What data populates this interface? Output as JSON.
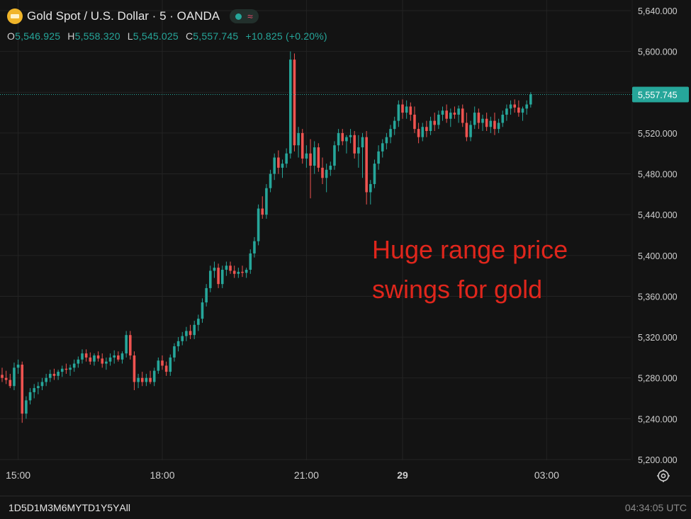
{
  "header": {
    "title": "Gold Spot / U.S. Dollar · 5 · OANDA",
    "status_icon": "market-open-dot",
    "wave_icon": "approx-wave-icon",
    "ohlc": [
      {
        "key": "O",
        "value": "5,546.925"
      },
      {
        "key": "H",
        "value": "5,558.320"
      },
      {
        "key": "L",
        "value": "5,545.025"
      },
      {
        "key": "C",
        "value": "5,557.745"
      },
      {
        "key": "",
        "value": "+10.825 (+0.20%)"
      }
    ]
  },
  "colors": {
    "up": "#26a69a",
    "down": "#ef5350",
    "annotation": "#e0261c",
    "price_tag": "#26a69a"
  },
  "chart_data": {
    "type": "candlestick",
    "symbol": "Gold Spot / U.S. Dollar",
    "interval": "5",
    "source": "OANDA",
    "y_ticks": [
      5200,
      5240,
      5280,
      5320,
      5360,
      5400,
      5440,
      5480,
      5520,
      5560,
      5600,
      5640
    ],
    "y_tick_labels": [
      "5,200.000",
      "5,240.000",
      "5,280.000",
      "5,320.000",
      "5,360.000",
      "5,400.000",
      "5,440.000",
      "5,480.000",
      "5,520.000",
      "5,560.000",
      "5,600.000",
      "5,640.000"
    ],
    "ylim": [
      5200,
      5640
    ],
    "x_tick_labels": [
      {
        "label": "15:00",
        "index": 4
      },
      {
        "label": "18:00",
        "index": 40
      },
      {
        "label": "21:00",
        "index": 76
      },
      {
        "label": "29",
        "index": 100
      },
      {
        "label": "03:00",
        "index": 136
      }
    ],
    "last_price": 5557.745,
    "last_price_label": "5,557.745",
    "annotation": [
      "Huge range price",
      "swings for gold"
    ],
    "candles": [
      [
        5283,
        5290,
        5276,
        5280
      ],
      [
        5280,
        5287,
        5274,
        5278
      ],
      [
        5278,
        5284,
        5270,
        5272
      ],
      [
        5272,
        5295,
        5268,
        5290
      ],
      [
        5290,
        5298,
        5284,
        5293
      ],
      [
        5293,
        5296,
        5236,
        5245
      ],
      [
        5245,
        5262,
        5240,
        5258
      ],
      [
        5258,
        5270,
        5254,
        5266
      ],
      [
        5266,
        5274,
        5260,
        5270
      ],
      [
        5270,
        5276,
        5264,
        5272
      ],
      [
        5272,
        5280,
        5268,
        5276
      ],
      [
        5276,
        5284,
        5272,
        5280
      ],
      [
        5280,
        5288,
        5276,
        5284
      ],
      [
        5284,
        5289,
        5278,
        5282
      ],
      [
        5282,
        5288,
        5278,
        5286
      ],
      [
        5286,
        5292,
        5281,
        5289
      ],
      [
        5289,
        5294,
        5284,
        5288
      ],
      [
        5288,
        5293,
        5282,
        5290
      ],
      [
        5290,
        5298,
        5286,
        5294
      ],
      [
        5294,
        5301,
        5290,
        5298
      ],
      [
        5298,
        5308,
        5294,
        5304
      ],
      [
        5304,
        5308,
        5296,
        5300
      ],
      [
        5300,
        5305,
        5293,
        5296
      ],
      [
        5296,
        5304,
        5292,
        5302
      ],
      [
        5302,
        5306,
        5296,
        5299
      ],
      [
        5299,
        5304,
        5290,
        5294
      ],
      [
        5294,
        5300,
        5288,
        5296
      ],
      [
        5296,
        5304,
        5292,
        5300
      ],
      [
        5300,
        5307,
        5294,
        5302
      ],
      [
        5302,
        5306,
        5296,
        5298
      ],
      [
        5298,
        5306,
        5294,
        5304
      ],
      [
        5304,
        5326,
        5300,
        5322
      ],
      [
        5322,
        5326,
        5298,
        5302
      ],
      [
        5302,
        5306,
        5268,
        5276
      ],
      [
        5276,
        5284,
        5270,
        5280
      ],
      [
        5280,
        5286,
        5272,
        5276
      ],
      [
        5276,
        5284,
        5272,
        5280
      ],
      [
        5280,
        5287,
        5274,
        5276
      ],
      [
        5276,
        5290,
        5272,
        5287
      ],
      [
        5287,
        5300,
        5284,
        5297
      ],
      [
        5297,
        5302,
        5288,
        5292
      ],
      [
        5292,
        5296,
        5282,
        5286
      ],
      [
        5286,
        5303,
        5282,
        5300
      ],
      [
        5300,
        5314,
        5296,
        5311
      ],
      [
        5311,
        5320,
        5306,
        5316
      ],
      [
        5316,
        5325,
        5312,
        5321
      ],
      [
        5321,
        5330,
        5316,
        5326
      ],
      [
        5326,
        5332,
        5318,
        5322
      ],
      [
        5322,
        5336,
        5318,
        5332
      ],
      [
        5332,
        5342,
        5326,
        5338
      ],
      [
        5338,
        5358,
        5334,
        5354
      ],
      [
        5354,
        5372,
        5350,
        5368
      ],
      [
        5368,
        5390,
        5364,
        5385
      ],
      [
        5385,
        5394,
        5378,
        5388
      ],
      [
        5388,
        5392,
        5368,
        5372
      ],
      [
        5372,
        5390,
        5368,
        5386
      ],
      [
        5386,
        5394,
        5380,
        5390
      ],
      [
        5390,
        5394,
        5382,
        5385
      ],
      [
        5385,
        5390,
        5378,
        5382
      ],
      [
        5382,
        5388,
        5378,
        5384
      ],
      [
        5384,
        5390,
        5379,
        5383
      ],
      [
        5383,
        5388,
        5378,
        5386
      ],
      [
        5386,
        5406,
        5382,
        5402
      ],
      [
        5402,
        5418,
        5398,
        5414
      ],
      [
        5414,
        5450,
        5410,
        5446
      ],
      [
        5446,
        5458,
        5436,
        5440
      ],
      [
        5440,
        5470,
        5436,
        5466
      ],
      [
        5466,
        5484,
        5462,
        5480
      ],
      [
        5480,
        5500,
        5474,
        5496
      ],
      [
        5496,
        5503,
        5480,
        5486
      ],
      [
        5486,
        5494,
        5476,
        5490
      ],
      [
        5490,
        5505,
        5486,
        5500
      ],
      [
        5500,
        5600,
        5495,
        5592
      ],
      [
        5592,
        5598,
        5502,
        5508
      ],
      [
        5508,
        5526,
        5496,
        5520
      ],
      [
        5520,
        5524,
        5490,
        5495
      ],
      [
        5495,
        5508,
        5486,
        5500
      ],
      [
        5500,
        5514,
        5456,
        5488
      ],
      [
        5488,
        5512,
        5480,
        5506
      ],
      [
        5506,
        5510,
        5482,
        5486
      ],
      [
        5486,
        5496,
        5470,
        5476
      ],
      [
        5476,
        5490,
        5462,
        5484
      ],
      [
        5484,
        5492,
        5478,
        5488
      ],
      [
        5488,
        5512,
        5484,
        5508
      ],
      [
        5508,
        5524,
        5502,
        5520
      ],
      [
        5520,
        5524,
        5508,
        5512
      ],
      [
        5512,
        5518,
        5500,
        5516
      ],
      [
        5516,
        5524,
        5510,
        5518
      ],
      [
        5518,
        5522,
        5495,
        5500
      ],
      [
        5500,
        5518,
        5486,
        5506
      ],
      [
        5506,
        5520,
        5476,
        5516
      ],
      [
        5516,
        5522,
        5450,
        5462
      ],
      [
        5462,
        5474,
        5450,
        5470
      ],
      [
        5470,
        5494,
        5466,
        5490
      ],
      [
        5490,
        5508,
        5484,
        5502
      ],
      [
        5502,
        5514,
        5496,
        5510
      ],
      [
        5510,
        5520,
        5504,
        5516
      ],
      [
        5516,
        5528,
        5510,
        5524
      ],
      [
        5524,
        5536,
        5518,
        5532
      ],
      [
        5532,
        5552,
        5526,
        5548
      ],
      [
        5548,
        5553,
        5534,
        5540
      ],
      [
        5540,
        5552,
        5534,
        5546
      ],
      [
        5546,
        5550,
        5532,
        5538
      ],
      [
        5538,
        5546,
        5520,
        5524
      ],
      [
        5524,
        5530,
        5510,
        5516
      ],
      [
        5516,
        5530,
        5512,
        5526
      ],
      [
        5526,
        5532,
        5516,
        5522
      ],
      [
        5522,
        5536,
        5518,
        5532
      ],
      [
        5532,
        5540,
        5522,
        5528
      ],
      [
        5528,
        5542,
        5524,
        5538
      ],
      [
        5538,
        5546,
        5532,
        5542
      ],
      [
        5542,
        5548,
        5530,
        5534
      ],
      [
        5534,
        5544,
        5526,
        5540
      ],
      [
        5540,
        5546,
        5534,
        5538
      ],
      [
        5538,
        5547,
        5530,
        5544
      ],
      [
        5544,
        5548,
        5526,
        5530
      ],
      [
        5530,
        5540,
        5512,
        5516
      ],
      [
        5516,
        5532,
        5512,
        5528
      ],
      [
        5528,
        5546,
        5524,
        5540
      ],
      [
        5540,
        5544,
        5524,
        5530
      ],
      [
        5530,
        5538,
        5522,
        5534
      ],
      [
        5534,
        5540,
        5522,
        5526
      ],
      [
        5526,
        5536,
        5520,
        5532
      ],
      [
        5532,
        5540,
        5518,
        5524
      ],
      [
        5524,
        5534,
        5520,
        5530
      ],
      [
        5530,
        5542,
        5526,
        5538
      ],
      [
        5538,
        5548,
        5532,
        5544
      ],
      [
        5544,
        5552,
        5538,
        5548
      ],
      [
        5548,
        5553,
        5540,
        5545
      ],
      [
        5545,
        5552,
        5536,
        5540
      ],
      [
        5540,
        5546,
        5532,
        5544
      ],
      [
        5544,
        5552,
        5538,
        5548
      ],
      [
        5548,
        5560,
        5545,
        5558
      ]
    ]
  },
  "bottom_bar": {
    "ranges": [
      "1D",
      "5D",
      "1M",
      "3M",
      "6M",
      "YTD",
      "1Y",
      "5Y",
      "All"
    ],
    "clock": "04:34:05 UTC",
    "settings_icon": "gear-icon"
  }
}
